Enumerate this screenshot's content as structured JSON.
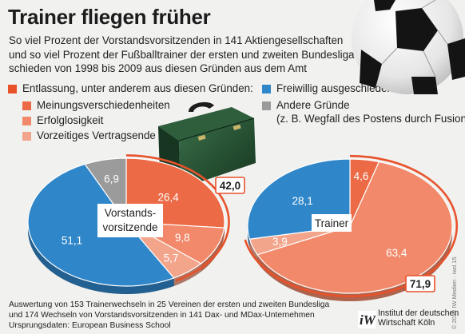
{
  "title": "Trainer fliegen früher",
  "subtitle_lines": [
    "So viel Prozent der Vorstandsvorsitzenden in 141 Aktiengesellschaften",
    "und so viel Prozent der Fußballtrainer der ersten und zweiten Bundesliga",
    "schieden von 1998 bis 2009 aus diesen Gründen aus dem Amt"
  ],
  "legend": {
    "dismissal": {
      "label": "Entlassung, unter anderem aus diesen Gründen:",
      "color": "#e8522b"
    },
    "disagreement": {
      "label": "Meinungsverschiedenheiten",
      "color": "#ec6a45"
    },
    "lack_of_success": {
      "label": "Erfolglosigkeit",
      "color": "#f1896a"
    },
    "early_contract_end": {
      "label": "Vorzeitiges Vertragsende",
      "color": "#f3a58c"
    },
    "voluntary": {
      "label": "Freiwillig ausgeschieden",
      "color": "#2f86c9"
    },
    "other": {
      "label": "Andere Gründe",
      "note": "(z. B. Wegfall des Postens durch Fusion)",
      "color": "#9b9b9b"
    }
  },
  "chart_data": [
    {
      "type": "pie",
      "title": "Vorstands-vorsitzende",
      "title_lines": [
        "Vorstands-",
        "vorsitzende"
      ],
      "slices": [
        {
          "name": "Meinungsverschiedenheiten",
          "value": 26.4,
          "label": "26,4",
          "color": "#ec6a45"
        },
        {
          "name": "Erfolglosigkeit",
          "value": 9.8,
          "label": "9,8",
          "color": "#f1896a"
        },
        {
          "name": "Vorzeitiges Vertragsende",
          "value": 5.7,
          "label": "5,7",
          "color": "#f3a58c"
        },
        {
          "name": "Freiwillig ausgeschieden",
          "value": 51.1,
          "label": "51,1",
          "color": "#2f86c9"
        },
        {
          "name": "Andere Gründe",
          "value": 6.9,
          "label": "6,9",
          "color": "#9b9b9b"
        }
      ],
      "dismissal_total": {
        "value": 42.0,
        "label": "42,0"
      }
    },
    {
      "type": "pie",
      "title": "Trainer",
      "title_lines": [
        "Trainer"
      ],
      "slices": [
        {
          "name": "Meinungsverschiedenheiten",
          "value": 4.6,
          "label": "4,6",
          "color": "#ec6a45"
        },
        {
          "name": "Erfolglosigkeit",
          "value": 63.4,
          "label": "63,4",
          "color": "#f1896a"
        },
        {
          "name": "Vorzeitiges Vertragsende",
          "value": 3.9,
          "label": "3,9",
          "color": "#f3a58c"
        },
        {
          "name": "Freiwillig ausgeschieden",
          "value": 28.1,
          "label": "28,1",
          "color": "#2f86c9"
        }
      ],
      "dismissal_total": {
        "value": 71.9,
        "label": "71,9"
      }
    }
  ],
  "footer_lines": [
    "Auswertung von 153 Trainerwechseln in 25 Vereinen der ersten und zweiten Bundesliga",
    "und 174 Wechseln von Vorstandsvorsitzenden in 141 Dax- und MDax-Unternehmen",
    "Ursprungsdaten: European Business School"
  ],
  "copyright": "© 2012 IW Medien · iwd 15",
  "publisher_lines": [
    "Institut der deutschen",
    "Wirtschaft Köln"
  ],
  "publisher_logo_text": "iW"
}
